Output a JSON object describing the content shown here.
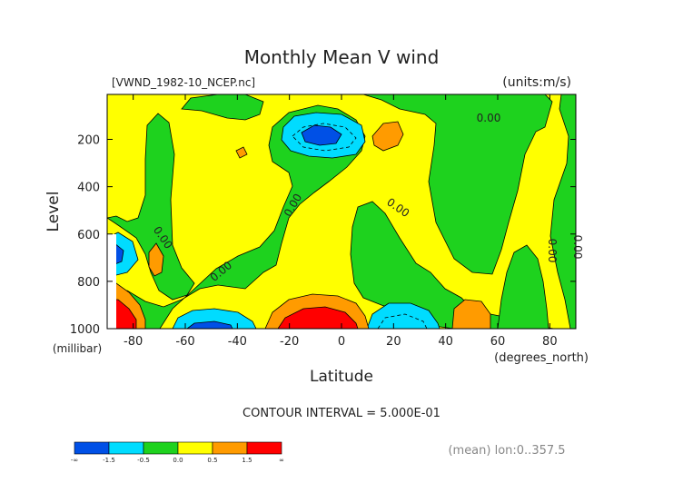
{
  "chart_data": {
    "type": "heatmap",
    "title": "Monthly Mean V wind",
    "file_label": "[VWND_1982-10_NCEP.nc]",
    "units_label": "(units:m/s)",
    "xlabel": "Latitude",
    "xunit_label": "(degrees_north)",
    "ylabel": "Level",
    "yunit_label": "(millibar)",
    "xlim": [
      -90,
      90
    ],
    "ylim": [
      1000,
      10
    ],
    "x_ticks": [
      -80,
      -60,
      -40,
      -20,
      0,
      20,
      40,
      60,
      80
    ],
    "y_ticks": [
      200,
      400,
      600,
      800,
      1000
    ],
    "contour_labels": [
      "0.00",
      "0.00",
      "0.00",
      "0.00",
      "0.00",
      "0.00",
      "0.00"
    ],
    "contour_interval": "CONTOUR INTERVAL = 5.000E-01",
    "averaging_note": "(mean) lon:0..357.5",
    "colorbar": {
      "labels": [
        "-∞",
        "-1.5",
        "-0.5",
        "0.0",
        "0.5",
        "1.5",
        "∞"
      ],
      "colors": [
        "#0050e6",
        "#00dcff",
        "#1ed21e",
        "#ffff00",
        "#ff9b00",
        "#ff0000"
      ]
    }
  }
}
